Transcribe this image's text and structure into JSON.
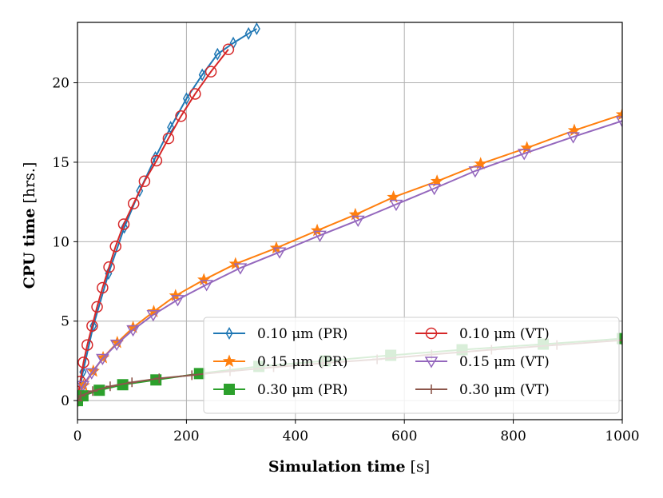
{
  "chart_data": {
    "type": "line",
    "title": "",
    "xlabel": {
      "bold": "Simulation time",
      "unit": "[s]"
    },
    "ylabel": {
      "bold": "CPU time",
      "unit": "[hrs.]"
    },
    "xlim": [
      0,
      1000
    ],
    "ylim": [
      -1.2,
      23.8
    ],
    "xticks": [
      0,
      200,
      400,
      600,
      800,
      1000
    ],
    "yticks": [
      0,
      5,
      10,
      15,
      20
    ],
    "grid": true,
    "legend_position": "lower-right",
    "series": [
      {
        "name": "0.10 μm (PR)",
        "color": "#1f77b4",
        "marker": "thin-diamond",
        "x": [
          0,
          10,
          29,
          57,
          86,
          114,
          143,
          171,
          200,
          229,
          257,
          286,
          314,
          329
        ],
        "y": [
          0,
          1.8,
          4.7,
          8.0,
          10.9,
          13.2,
          15.3,
          17.2,
          19.0,
          20.5,
          21.8,
          22.5,
          23.1,
          23.4
        ]
      },
      {
        "name": "0.10 μm (VT)",
        "color": "#d62728",
        "marker": "circle",
        "x": [
          0,
          5,
          11,
          18,
          27,
          36,
          46,
          58,
          70,
          85,
          103,
          123,
          145,
          167,
          190,
          216,
          245,
          277
        ],
        "y": [
          0,
          1.2,
          2.4,
          3.5,
          4.7,
          5.9,
          7.1,
          8.4,
          9.7,
          11.1,
          12.4,
          13.8,
          15.1,
          16.5,
          17.9,
          19.3,
          20.7,
          22.1
        ]
      },
      {
        "name": "0.15 μm (PR)",
        "color": "#ff7f0e",
        "marker": "star",
        "x": [
          0,
          11,
          29,
          47,
          73,
          102,
          140,
          180,
          232,
          290,
          365,
          440,
          510,
          580,
          660,
          740,
          825,
          912,
          1000
        ],
        "y": [
          0,
          0.95,
          1.85,
          2.7,
          3.65,
          4.6,
          5.6,
          6.6,
          7.6,
          8.6,
          9.6,
          10.7,
          11.7,
          12.8,
          13.8,
          14.9,
          15.9,
          17.0,
          18.0
        ]
      },
      {
        "name": "0.15 μm (VT)",
        "color": "#9467bd",
        "marker": "triangle-down",
        "x": [
          0,
          10,
          26,
          46,
          72,
          102,
          139,
          184,
          237,
          299,
          371,
          445,
          515,
          585,
          655,
          730,
          820,
          910,
          1000
        ],
        "y": [
          0,
          0.95,
          1.75,
          2.65,
          3.55,
          4.45,
          5.4,
          6.35,
          7.3,
          8.35,
          9.35,
          10.4,
          11.35,
          12.35,
          13.35,
          14.45,
          15.55,
          16.6,
          17.6
        ]
      },
      {
        "name": "0.30 μm (PR)",
        "color": "#2ca02c",
        "marker": "square",
        "x": [
          0,
          10,
          40,
          83,
          144,
          224,
          333,
          455,
          575,
          706,
          855,
          1000
        ],
        "y": [
          0,
          0.3,
          0.65,
          1.0,
          1.3,
          1.7,
          2.15,
          2.5,
          2.85,
          3.2,
          3.55,
          3.9
        ]
      },
      {
        "name": "0.30 μm (VT)",
        "color": "#8c564b",
        "marker": "plus",
        "x": [
          0,
          6,
          28,
          60,
          100,
          150,
          210,
          280,
          360,
          450,
          550,
          650,
          760,
          880,
          1000
        ],
        "y": [
          0,
          0.3,
          0.6,
          0.9,
          1.15,
          1.4,
          1.6,
          1.85,
          2.1,
          2.35,
          2.6,
          2.9,
          3.2,
          3.5,
          3.8
        ]
      }
    ]
  }
}
